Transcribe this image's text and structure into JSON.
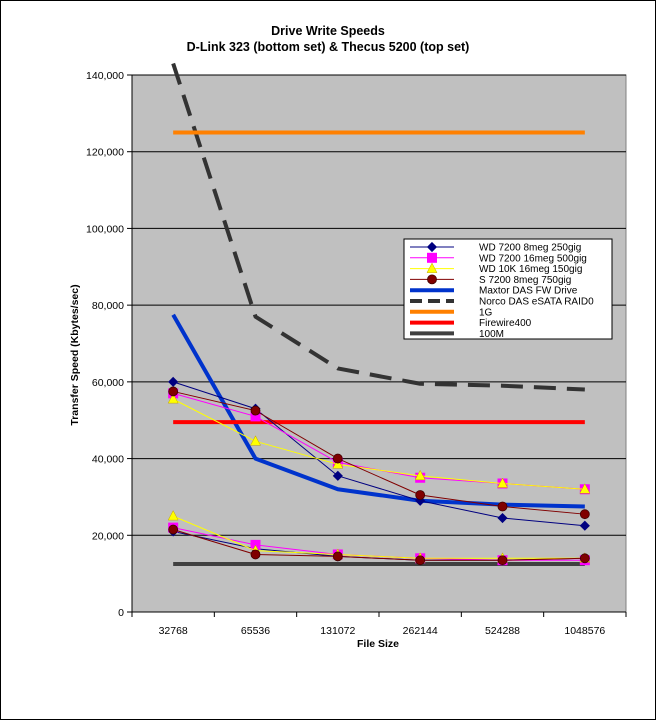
{
  "chart_data": {
    "type": "line",
    "title": "Drive Write Speeds",
    "subtitle": "D-Link 323 (bottom set) & Thecus 5200 (top set)",
    "xlabel": "File Size",
    "ylabel": "Transfer Speed (Kbytes/sec)",
    "categories": [
      "32768",
      "65536",
      "131072",
      "262144",
      "524288",
      "1048576"
    ],
    "ylim": [
      0,
      140000
    ],
    "yticks": [
      0,
      20000,
      40000,
      60000,
      80000,
      100000,
      120000,
      140000
    ],
    "ytick_labels": [
      "0",
      "20,000",
      "40,000",
      "60,000",
      "80,000",
      "100,000",
      "120,000",
      "140,000"
    ],
    "grid": true,
    "plot_background": "#c0c0c0",
    "legend_position": "right",
    "series": [
      {
        "name": "WD 7200 8meg 250gig",
        "set": "top",
        "color": "#000080",
        "marker": "diamond",
        "values": [
          60000,
          53000,
          35500,
          29000,
          24500,
          22500
        ]
      },
      {
        "name": "WD 7200 16meg 500gig",
        "set": "top",
        "color": "#ff00ff",
        "marker": "square",
        "values": [
          57000,
          51000,
          39000,
          35000,
          33500,
          32000
        ]
      },
      {
        "name": "WD 10K 16meg 150gig",
        "set": "top",
        "color": "#ffff00",
        "marker": "triangle",
        "values": [
          55500,
          44500,
          38500,
          35500,
          33500,
          32000
        ]
      },
      {
        "name": "S 7200 8meg 750gig",
        "set": "top",
        "color": "#800000",
        "marker": "circle",
        "values": [
          57500,
          52500,
          40000,
          30500,
          27500,
          25500
        ]
      },
      {
        "name": "Maxtor DAS FW Drive",
        "color": "#0033cc",
        "marker": "none",
        "dash": "solid",
        "width": 4,
        "values": [
          77500,
          40000,
          32000,
          29000,
          28000,
          27500
        ]
      },
      {
        "name": "Norco DAS eSATA RAID0",
        "color": "#333333",
        "marker": "none",
        "dash": "dashed",
        "width": 4,
        "values": [
          143000,
          77000,
          63500,
          59500,
          59000,
          58000
        ]
      },
      {
        "name": "1G",
        "color": "#ff8000",
        "marker": "none",
        "dash": "solid",
        "width": 4,
        "values": [
          125000,
          125000,
          125000,
          125000,
          125000,
          125000
        ]
      },
      {
        "name": "Firewire400",
        "color": "#ff0000",
        "marker": "none",
        "dash": "solid",
        "width": 4,
        "values": [
          49500,
          49500,
          49500,
          49500,
          49500,
          49500
        ]
      },
      {
        "name": "100M",
        "color": "#404040",
        "marker": "none",
        "dash": "solid",
        "width": 4,
        "values": [
          12500,
          12500,
          12500,
          12500,
          12500,
          12500
        ]
      }
    ],
    "bottom_set": [
      {
        "name": "WD 7200 8meg 250gig",
        "color": "#000080",
        "marker": "diamond",
        "values": [
          21000,
          16500,
          14500,
          13500,
          13500,
          14000
        ]
      },
      {
        "name": "WD 7200 16meg 500gig",
        "color": "#ff00ff",
        "marker": "square",
        "values": [
          22000,
          17500,
          15000,
          14000,
          13500,
          13500
        ]
      },
      {
        "name": "WD 10K 16meg 150gig",
        "color": "#ffff00",
        "marker": "triangle",
        "values": [
          25000,
          16000,
          15000,
          14000,
          14000,
          14000
        ]
      },
      {
        "name": "S 7200 8meg 750gig",
        "color": "#800000",
        "marker": "circle",
        "values": [
          21500,
          15000,
          14500,
          13500,
          13500,
          14000
        ]
      }
    ]
  }
}
